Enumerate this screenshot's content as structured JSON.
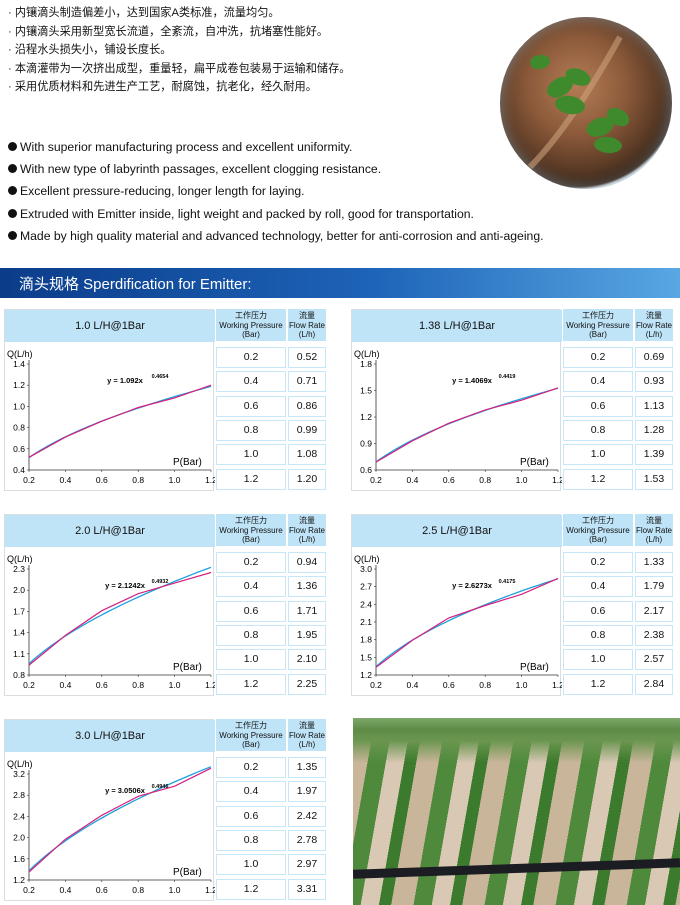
{
  "features_cn": [
    "· 内镶滴头制造偏差小，达到国家A类标准，流量均匀。",
    "· 内镶滴头采用新型宽长流道，全紊流，自冲洗，抗堵塞性能好。",
    "· 沿程水头损失小，铺设长度长。",
    "· 本滴灌带为一次挤出成型，重量轻，扁平成卷包装易于运输和储存。",
    "· 采用优质材料和先进生产工艺，耐腐蚀，抗老化，经久耐用。"
  ],
  "features_en": [
    "With superior manufacturing process and excellent uniformity.",
    "With new type of labyrinth passages, excellent  clogging resistance.",
    "Excellent pressure-reducing, longer length for laying.",
    "Extruded with Emitter inside, light weight and packed by roll, good for transportation.",
    "Made by high quality material and advanced technology, better for anti-corrosion and anti-ageing."
  ],
  "section_title": "滴头规格 Sperdification for Emitter:",
  "table_header": {
    "pressure_cn": "工作压力",
    "pressure_en": "Working Pressure",
    "pressure_unit": "(Bar)",
    "flow_cn": "流量",
    "flow_en": "Flow Rate",
    "flow_unit": "(L/h)"
  },
  "colors": {
    "fit_line": "#1ea0e0",
    "measured_line": "#d6207c",
    "banner_dark": "#0b3c8a",
    "header_fill": "#bfe3f7"
  },
  "chart_data": [
    {
      "type": "line",
      "rated": "1.0 L/H@1Bar",
      "ylabel": "Q(L/h)",
      "xlabel": "P(Bar)",
      "x": [
        0.2,
        0.4,
        0.6,
        0.8,
        1.0,
        1.2
      ],
      "y": [
        0.52,
        0.71,
        0.86,
        0.99,
        1.08,
        1.2
      ],
      "ylim": [
        0.4,
        1.4
      ],
      "yticks": [
        "1.4",
        "1.2",
        "1.0",
        "0.8",
        "0.6",
        "0.4"
      ],
      "xticks": [
        "0.2",
        "0.4",
        "0.6",
        "0.8",
        "1.0",
        "1.2"
      ],
      "eq_coef": "y = 1.092x",
      "eq_exp": "0.4654",
      "coef": 1.092,
      "exp": 0.4654
    },
    {
      "type": "line",
      "rated": "1.38 L/H@1Bar",
      "ylabel": "Q(L/h)",
      "xlabel": "P(Bar)",
      "x": [
        0.2,
        0.4,
        0.6,
        0.8,
        1.0,
        1.2
      ],
      "y": [
        0.69,
        0.93,
        1.13,
        1.28,
        1.39,
        1.53
      ],
      "ylim": [
        0.6,
        1.8
      ],
      "yticks": [
        "1.8",
        "1.5",
        "1.2",
        "0.9",
        "0.6"
      ],
      "xticks": [
        "0.2",
        "0.4",
        "0.6",
        "0.8",
        "1.0",
        "1.2"
      ],
      "eq_coef": "y = 1.4069x",
      "eq_exp": "0.4419",
      "coef": 1.4069,
      "exp": 0.4419
    },
    {
      "type": "line",
      "rated": "2.0 L/H@1Bar",
      "ylabel": "Q(L/h)",
      "xlabel": "P(Bar)",
      "x": [
        0.2,
        0.4,
        0.6,
        0.8,
        1.0,
        1.2
      ],
      "y": [
        0.94,
        1.36,
        1.71,
        1.95,
        2.1,
        2.25
      ],
      "ylim": [
        0.8,
        2.3
      ],
      "yticks": [
        "2.3",
        "2.0",
        "1.7",
        "1.4",
        "1.1",
        "0.8"
      ],
      "xticks": [
        "0.2",
        "0.4",
        "0.6",
        "0.8",
        "1.0",
        "1.2"
      ],
      "eq_coef": "y = 2.1242x",
      "eq_exp": "0.4932",
      "coef": 2.1242,
      "exp": 0.4932
    },
    {
      "type": "line",
      "rated": "2.5 L/H@1Bar",
      "ylabel": "Q(L/h)",
      "xlabel": "P(Bar)",
      "x": [
        0.2,
        0.4,
        0.6,
        0.8,
        1.0,
        1.2
      ],
      "y": [
        1.33,
        1.79,
        2.17,
        2.38,
        2.57,
        2.84
      ],
      "ylim": [
        1.2,
        3.0
      ],
      "yticks": [
        "3.0",
        "2.7",
        "2.4",
        "2.1",
        "1.8",
        "1.5",
        "1.2"
      ],
      "xticks": [
        "0.2",
        "0.4",
        "0.6",
        "0.8",
        "1.0",
        "1.2"
      ],
      "eq_coef": "y = 2.6273x",
      "eq_exp": "0.4175",
      "coef": 2.6273,
      "exp": 0.4175
    },
    {
      "type": "line",
      "rated": "3.0 L/H@1Bar",
      "ylabel": "Q(L/h)",
      "xlabel": "P(Bar)",
      "x": [
        0.2,
        0.4,
        0.6,
        0.8,
        1.0,
        1.2
      ],
      "y": [
        1.35,
        1.97,
        2.42,
        2.78,
        2.97,
        3.31
      ],
      "ylim": [
        1.2,
        3.2
      ],
      "yticks": [
        "3.2",
        "2.8",
        "2.4",
        "2.0",
        "1.6",
        "1.2"
      ],
      "xticks": [
        "0.2",
        "0.4",
        "0.6",
        "0.8",
        "1.0",
        "1.2"
      ],
      "eq_coef": "y = 3.0506x",
      "eq_exp": "0.4946",
      "coef": 3.0506,
      "exp": 0.4946
    }
  ]
}
